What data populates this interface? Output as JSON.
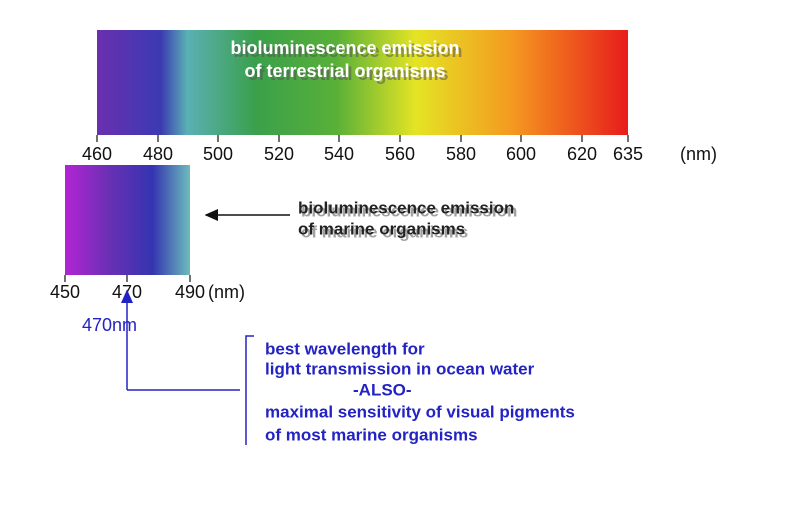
{
  "top_spectrum": {
    "label_lines": [
      "bioluminescence emission",
      "of terrestrial organisms"
    ],
    "ticks": [
      "460",
      "480",
      "500",
      "520",
      "540",
      "560",
      "580",
      "600",
      "620",
      "635"
    ],
    "unit": "(nm)"
  },
  "marine_spectrum": {
    "label_lines": [
      "bioluminescence emission",
      "of marine organisms"
    ],
    "ticks": [
      "450",
      "470",
      "490"
    ],
    "unit": "(nm)"
  },
  "marker": {
    "label": "470nm"
  },
  "note": {
    "lines": [
      "best wavelength for",
      "light transmission in ocean water",
      "-ALSO-",
      "maximal sensitivity of visual pigments",
      "of most marine organisms"
    ]
  }
}
